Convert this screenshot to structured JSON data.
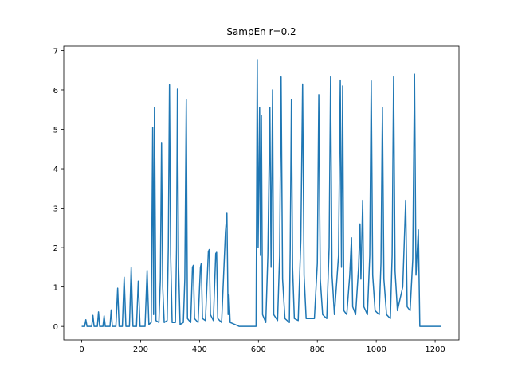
{
  "chart_data": {
    "type": "line",
    "title": "SampEn r=0.2",
    "color": "#1f77b4",
    "grid": false,
    "xlim": [
      -61,
      1281
    ],
    "ylim": [
      -0.34,
      7.11
    ],
    "xticks": [
      0,
      200,
      400,
      600,
      800,
      1000,
      1200
    ],
    "yticks": [
      0,
      1,
      2,
      3,
      4,
      5,
      6,
      7
    ],
    "x": [
      0,
      10,
      14,
      18,
      34,
      38,
      42,
      53,
      57,
      61,
      72,
      76,
      80,
      96,
      100,
      104,
      116,
      122,
      127,
      138,
      144,
      150,
      162,
      168,
      174,
      186,
      192,
      198,
      215,
      222,
      228,
      236,
      241,
      244,
      247,
      252,
      262,
      267,
      271,
      275,
      280,
      290,
      294,
      298,
      302,
      307,
      318,
      322,
      325,
      329,
      334,
      345,
      350,
      355,
      359,
      370,
      376,
      379,
      383,
      395,
      403,
      406,
      410,
      420,
      430,
      433,
      437,
      447,
      455,
      458,
      462,
      475,
      488,
      493,
      497,
      500,
      504,
      520,
      535,
      592,
      596,
      599,
      604,
      607,
      610,
      614,
      625,
      632,
      639,
      643,
      648,
      652,
      665,
      672,
      677,
      682,
      690,
      705,
      708,
      712,
      716,
      722,
      735,
      744,
      750,
      755,
      762,
      790,
      800,
      805,
      810,
      818,
      832,
      840,
      845,
      850,
      858,
      872,
      878,
      882,
      886,
      890,
      900,
      910,
      916,
      920,
      930,
      940,
      945,
      948,
      954,
      958,
      970,
      978,
      983,
      988,
      996,
      1010,
      1016,
      1021,
      1026,
      1035,
      1048,
      1054,
      1059,
      1064,
      1072,
      1090,
      1100,
      1105,
      1115,
      1124,
      1130,
      1135,
      1143,
      1148,
      1219
    ],
    "values": [
      0,
      0,
      0.17,
      0,
      0,
      0.28,
      0,
      0,
      0.37,
      0,
      0,
      0.27,
      0,
      0,
      0.42,
      0,
      0,
      0.97,
      0,
      0,
      1.25,
      0,
      0,
      1.5,
      0,
      0,
      1.15,
      0,
      0,
      1.42,
      0.05,
      0.1,
      5.05,
      0.3,
      5.55,
      0.15,
      0.1,
      1.2,
      4.65,
      1.0,
      0.1,
      0.15,
      2.0,
      6.13,
      1.8,
      0.1,
      0.1,
      2.0,
      6.02,
      1.5,
      0.05,
      0.1,
      1.2,
      5.75,
      0.2,
      0.1,
      1.5,
      1.55,
      0.2,
      0.1,
      1.5,
      1.6,
      0.2,
      0.15,
      1.9,
      1.95,
      0.3,
      0.15,
      1.85,
      1.88,
      0.2,
      0.1,
      2.4,
      2.87,
      0.3,
      0.8,
      0.1,
      0.05,
      0,
      0,
      6.77,
      2.0,
      5.55,
      1.8,
      5.35,
      0.3,
      0.1,
      1.8,
      5.55,
      1.5,
      6.0,
      0.3,
      0.15,
      1.8,
      6.33,
      1.2,
      0.2,
      0.1,
      2.0,
      5.75,
      1.5,
      0.2,
      0.15,
      2.2,
      6.15,
      1.3,
      0.2,
      0.2,
      1.6,
      5.88,
      1.2,
      0.3,
      0.2,
      2.0,
      6.33,
      1.3,
      0.3,
      1.8,
      6.25,
      1.5,
      6.1,
      0.4,
      0.3,
      1.3,
      2.25,
      0.5,
      0.3,
      1.5,
      2.6,
      1.2,
      3.2,
      0.5,
      0.3,
      1.8,
      6.23,
      1.3,
      0.4,
      0.3,
      1.6,
      5.55,
      1.2,
      0.3,
      0.2,
      1.8,
      6.33,
      1.4,
      0.4,
      1.0,
      3.2,
      0.5,
      0.4,
      1.7,
      6.4,
      1.3,
      2.45,
      0,
      0
    ]
  }
}
